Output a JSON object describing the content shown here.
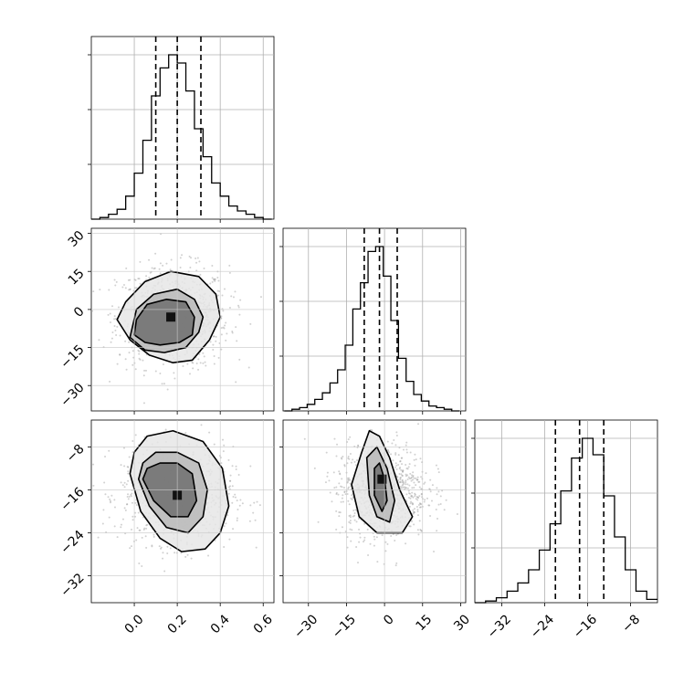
{
  "chart_data": {
    "type": "corner",
    "parameters": [
      {
        "range": [
          -0.2,
          0.65
        ],
        "ticks": [
          0.0,
          0.2,
          0.4,
          0.6
        ],
        "tick_labels": [
          "0.0",
          "0.2",
          "0.4",
          "0.6"
        ],
        "quantiles": [
          0.1,
          0.2,
          0.31
        ],
        "hist_x": [
          -0.18,
          -0.14,
          -0.1,
          -0.06,
          -0.02,
          0.02,
          0.06,
          0.1,
          0.14,
          0.18,
          0.22,
          0.26,
          0.3,
          0.34,
          0.38,
          0.42,
          0.46,
          0.5,
          0.54,
          0.58,
          0.62
        ],
        "hist_y": [
          0,
          1,
          3,
          6,
          14,
          28,
          48,
          75,
          92,
          100,
          95,
          78,
          55,
          38,
          22,
          14,
          8,
          5,
          3,
          1,
          0
        ]
      },
      {
        "range": [
          -40,
          32
        ],
        "ticks": [
          -30,
          -15,
          0,
          15,
          30
        ],
        "tick_labels": [
          "−30",
          "−15",
          "0",
          "15",
          "30"
        ],
        "quantiles": [
          -8,
          -2,
          5
        ],
        "hist_x": [
          -38,
          -35,
          -32,
          -29,
          -26,
          -23,
          -20,
          -17,
          -14,
          -11,
          -8,
          -5,
          -2,
          1,
          4,
          7,
          10,
          13,
          16,
          19,
          22,
          25,
          28
        ],
        "hist_y": [
          0,
          1,
          2,
          4,
          7,
          11,
          17,
          25,
          40,
          62,
          78,
          97,
          100,
          82,
          55,
          32,
          18,
          10,
          6,
          3,
          2,
          1,
          0
        ]
      },
      {
        "range": [
          -37,
          -3
        ],
        "ticks": [
          -32,
          -24,
          -16,
          -8
        ],
        "tick_labels": [
          "−32",
          "−24",
          "−16",
          "−8"
        ],
        "quantiles": [
          -22,
          -17.5,
          -13
        ],
        "hist_x": [
          -36,
          -34,
          -32,
          -30,
          -28,
          -26,
          -24,
          -22,
          -20,
          -18,
          -16,
          -14,
          -12,
          -10,
          -8,
          -6,
          -4
        ],
        "hist_y": [
          0,
          1,
          3,
          7,
          12,
          20,
          32,
          48,
          68,
          88,
          100,
          90,
          65,
          40,
          20,
          7,
          2
        ]
      }
    ],
    "pairs": [
      {
        "x_param": 0,
        "y_param": 1,
        "y_ticks": [
          30,
          15,
          0,
          -15,
          -30
        ],
        "y_tick_labels": [
          "30",
          "15",
          "0",
          "−15",
          "−30"
        ],
        "center": [
          0.18,
          -3
        ],
        "sigma": [
          0.13,
          10
        ],
        "contours": [
          [
            [
              0.0,
              -10
            ],
            [
              0.05,
              -13
            ],
            [
              0.12,
              -14
            ],
            [
              0.21,
              -13
            ],
            [
              0.27,
              -10
            ],
            [
              0.28,
              -3
            ],
            [
              0.24,
              3
            ],
            [
              0.15,
              4
            ],
            [
              0.06,
              2
            ],
            [
              0.01,
              -4
            ]
          ],
          [
            [
              -0.02,
              -11
            ],
            [
              0.05,
              -16
            ],
            [
              0.14,
              -17
            ],
            [
              0.24,
              -15
            ],
            [
              0.3,
              -9
            ],
            [
              0.32,
              -3
            ],
            [
              0.28,
              4
            ],
            [
              0.2,
              8
            ],
            [
              0.09,
              6
            ],
            [
              0.01,
              0
            ]
          ],
          [
            [
              -0.08,
              -4
            ],
            [
              -0.02,
              -12
            ],
            [
              0.07,
              -18
            ],
            [
              0.18,
              -21
            ],
            [
              0.27,
              -20
            ],
            [
              0.35,
              -12
            ],
            [
              0.4,
              -3
            ],
            [
              0.38,
              6
            ],
            [
              0.3,
              13
            ],
            [
              0.17,
              15
            ],
            [
              0.05,
              11
            ],
            [
              -0.04,
              3
            ]
          ]
        ],
        "peak": [
          0.17,
          -3
        ]
      },
      {
        "x_param": 0,
        "y_param": 2,
        "y_ticks": [
          -8,
          -16,
          -24,
          -32
        ],
        "y_tick_labels": [
          "−8",
          "−16",
          "−24",
          "−32"
        ],
        "center": [
          0.2,
          -17
        ],
        "sigma": [
          0.13,
          4.5
        ],
        "contours": [
          [
            [
              0.04,
              -14
            ],
            [
              0.09,
              -18
            ],
            [
              0.17,
              -21
            ],
            [
              0.25,
              -21
            ],
            [
              0.29,
              -18
            ],
            [
              0.27,
              -13
            ],
            [
              0.2,
              -11
            ],
            [
              0.12,
              -11
            ],
            [
              0.06,
              -12
            ]
          ],
          [
            [
              0.02,
              -14
            ],
            [
              0.07,
              -19
            ],
            [
              0.15,
              -23
            ],
            [
              0.25,
              -24
            ],
            [
              0.32,
              -21
            ],
            [
              0.34,
              -16
            ],
            [
              0.3,
              -11
            ],
            [
              0.2,
              -9
            ],
            [
              0.1,
              -9
            ],
            [
              0.04,
              -11
            ]
          ],
          [
            [
              -0.02,
              -13
            ],
            [
              0.03,
              -20
            ],
            [
              0.12,
              -25
            ],
            [
              0.22,
              -27.5
            ],
            [
              0.33,
              -27
            ],
            [
              0.4,
              -24
            ],
            [
              0.44,
              -19
            ],
            [
              0.41,
              -12
            ],
            [
              0.32,
              -7
            ],
            [
              0.18,
              -5
            ],
            [
              0.06,
              -6
            ],
            [
              0.0,
              -9
            ]
          ]
        ],
        "peak": [
          0.2,
          -17
        ]
      },
      {
        "x_param": 1,
        "y_param": 2,
        "y_ticks": [],
        "y_tick_labels": [],
        "center": [
          -1,
          -16
        ],
        "sigma": [
          9,
          4.5
        ],
        "contours": [
          [
            [
              -4,
              -12
            ],
            [
              -4,
              -17
            ],
            [
              -1,
              -20
            ],
            [
              1,
              -18
            ],
            [
              0,
              -14
            ],
            [
              -2,
              -11
            ]
          ],
          [
            [
              -7,
              -10
            ],
            [
              -6,
              -17
            ],
            [
              -3,
              -21
            ],
            [
              2,
              -22
            ],
            [
              4,
              -18
            ],
            [
              1,
              -12
            ],
            [
              -3,
              -8
            ]
          ],
          [
            [
              -13,
              -15
            ],
            [
              -10,
              -21
            ],
            [
              -3,
              -24
            ],
            [
              7,
              -24
            ],
            [
              11,
              -21
            ],
            [
              6,
              -16
            ],
            [
              2,
              -10
            ],
            [
              -2,
              -6
            ],
            [
              -6,
              -5
            ],
            [
              -9,
              -9
            ]
          ]
        ],
        "peak": [
          -1,
          -14
        ]
      }
    ]
  }
}
